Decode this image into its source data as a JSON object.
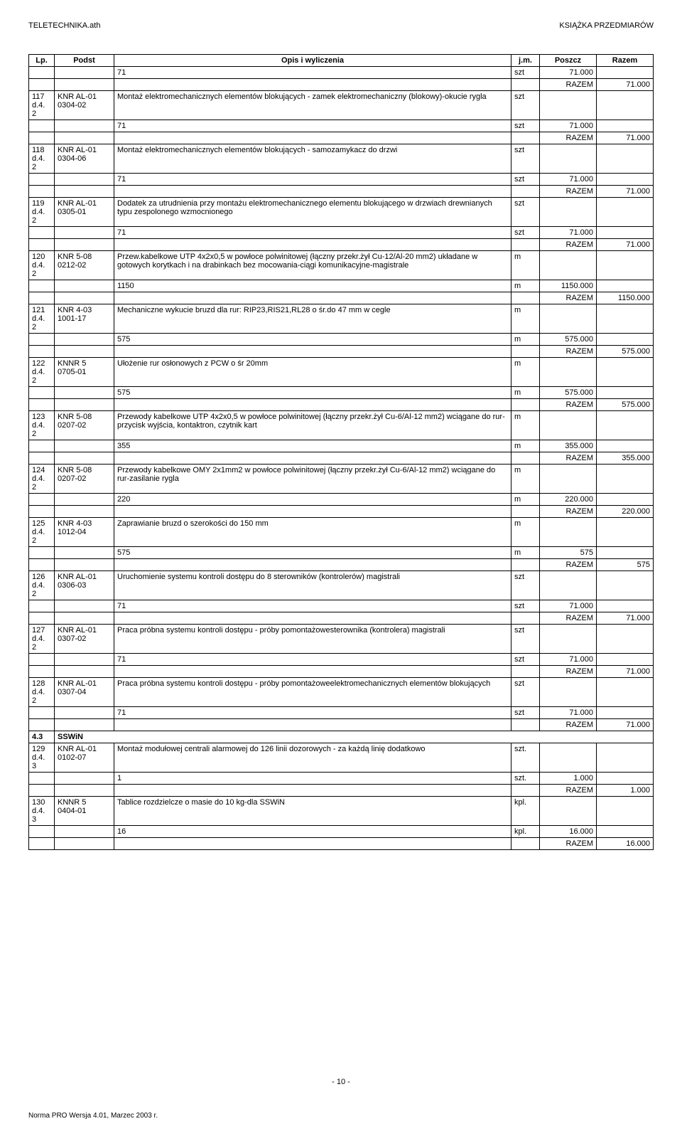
{
  "header_left": "TELETECHNIKA.ath",
  "header_right": "KSIĄŻKA PRZEDMIARÓW",
  "columns": {
    "lp": "Lp.",
    "podst": "Podst",
    "opis": "Opis i wyliczenia",
    "jm": "j.m.",
    "poszcz": "Poszcz",
    "razem": "Razem"
  },
  "razem_label": "RAZEM",
  "page_num": "- 10 -",
  "norma": "Norma PRO Wersja 4.01, Marzec 2003 r.",
  "rows": [
    {
      "type": "calc",
      "lp": "",
      "podst": "",
      "opis": "71",
      "jm": "szt",
      "poszcz": "71.000"
    },
    {
      "type": "razem",
      "razem": "71.000"
    },
    {
      "type": "item",
      "lp": "117\nd.4.\n2",
      "podst": "KNR AL-01\n0304-02",
      "opis": "Montaż elektromechanicznych elementów blokujących - zamek elektromechaniczny (blokowy)-okucie rygla",
      "jm": "szt"
    },
    {
      "type": "calc",
      "opis": "71",
      "jm": "szt",
      "poszcz": "71.000"
    },
    {
      "type": "razem",
      "razem": "71.000"
    },
    {
      "type": "item",
      "lp": "118\nd.4.\n2",
      "podst": "KNR AL-01\n0304-06",
      "opis": "Montaż elektromechanicznych elementów blokujących - samozamykacz do drzwi",
      "jm": "szt"
    },
    {
      "type": "calc",
      "opis": "71",
      "jm": "szt",
      "poszcz": "71.000"
    },
    {
      "type": "razem",
      "razem": "71.000"
    },
    {
      "type": "item",
      "lp": "119\nd.4.\n2",
      "podst": "KNR AL-01\n0305-01",
      "opis": "Dodatek za utrudnienia przy montażu elektromechanicznego elementu blokującego w drzwiach drewnianych typu zespolonego wzmocnionego",
      "jm": "szt"
    },
    {
      "type": "calc",
      "opis": "71",
      "jm": "szt",
      "poszcz": "71.000"
    },
    {
      "type": "razem",
      "razem": "71.000"
    },
    {
      "type": "item",
      "lp": "120\nd.4.\n2",
      "podst": "KNR 5-08\n0212-02",
      "opis": "Przew.kabelkowe  UTP 4x2x0,5 w powłoce polwinitowej (łączny przekr.żył Cu-12/Al-20 mm2) układane w gotowych korytkach i na drabinkach bez mocowania-ciągi komunikacyjne-magistrale",
      "jm": "m"
    },
    {
      "type": "calc",
      "opis": "1150",
      "jm": "m",
      "poszcz": "1150.000"
    },
    {
      "type": "razem",
      "razem": "1150.000"
    },
    {
      "type": "item",
      "lp": "121\nd.4.\n2",
      "podst": "KNR 4-03\n1001-17",
      "opis": "Mechaniczne wykucie bruzd dla rur: RIP23,RIS21,RL28 o śr.do 47 mm w cegle",
      "jm": "m"
    },
    {
      "type": "calc",
      "opis": "575",
      "jm": "m",
      "poszcz": "575.000"
    },
    {
      "type": "razem",
      "razem": "575.000"
    },
    {
      "type": "item",
      "lp": "122\nd.4.\n2",
      "podst": "KNNR 5\n0705-01",
      "opis": "Ułożenie rur osłonowych z PCW o śr 20mm",
      "jm": "m"
    },
    {
      "type": "calc",
      "opis": "575",
      "jm": "m",
      "poszcz": "575.000"
    },
    {
      "type": "razem",
      "razem": "575.000"
    },
    {
      "type": "item",
      "lp": "123\nd.4.\n2",
      "podst": "KNR 5-08\n0207-02",
      "opis": "Przewody kabelkowe UTP 4x2x0,5 w powłoce polwinitowej (łączny przekr.żył Cu-6/Al-12 mm2) wciągane do rur-przycisk wyjścia, kontaktron, czytnik kart",
      "jm": "m"
    },
    {
      "type": "calc",
      "opis": "355",
      "jm": "m",
      "poszcz": "355.000"
    },
    {
      "type": "razem",
      "razem": "355.000"
    },
    {
      "type": "item",
      "lp": "124\nd.4.\n2",
      "podst": "KNR 5-08\n0207-02",
      "opis": "Przewody kabelkowe OMY 2x1mm2 w powłoce polwinitowej (łączny przekr.żył Cu-6/Al-12 mm2) wciągane do rur-zasilanie rygla",
      "jm": "m"
    },
    {
      "type": "calc",
      "opis": "220",
      "jm": "m",
      "poszcz": "220.000"
    },
    {
      "type": "razem",
      "razem": "220.000"
    },
    {
      "type": "item",
      "lp": "125\nd.4.\n2",
      "podst": "KNR 4-03\n1012-04",
      "opis": "Zaprawianie bruzd o szerokości do 150 mm",
      "jm": "m"
    },
    {
      "type": "calc",
      "opis": "575",
      "jm": "m",
      "poszcz": "575"
    },
    {
      "type": "razem",
      "razem": "575"
    },
    {
      "type": "item",
      "lp": "126\nd.4.\n2",
      "podst": "KNR AL-01\n0306-03",
      "opis": "Uruchomienie systemu kontroli dostępu do 8 sterowników (kontrolerów) magistrali",
      "jm": "szt"
    },
    {
      "type": "calc",
      "opis": "71",
      "jm": "szt",
      "poszcz": "71.000"
    },
    {
      "type": "razem",
      "razem": "71.000"
    },
    {
      "type": "item",
      "lp": "127\nd.4.\n2",
      "podst": "KNR AL-01\n0307-02",
      "opis": "Praca próbna systemu kontroli dostępu - próby pomontażowesterownika (kontrolera) magistrali",
      "jm": "szt"
    },
    {
      "type": "calc",
      "opis": "71",
      "jm": "szt",
      "poszcz": "71.000"
    },
    {
      "type": "razem",
      "razem": "71.000"
    },
    {
      "type": "item",
      "lp": "128\nd.4.\n2",
      "podst": "KNR AL-01\n0307-04",
      "opis": "Praca próbna systemu kontroli dostępu - próby pomontażoweelektromechanicznych elementów blokujących",
      "jm": "szt"
    },
    {
      "type": "calc",
      "opis": "71",
      "jm": "szt",
      "poszcz": "71.000"
    },
    {
      "type": "razem",
      "razem": "71.000"
    },
    {
      "type": "section",
      "lp": "4.3",
      "podst": "SSWiN"
    },
    {
      "type": "item",
      "lp": "129\nd.4.\n3",
      "podst": "KNR AL-01\n0102-07",
      "opis": "Montaż modułowej centrali alarmowej do 126 linii dozorowych - za każdą linię dodatkowo",
      "jm": "szt."
    },
    {
      "type": "calc",
      "opis": "1",
      "jm": "szt.",
      "poszcz": "1.000"
    },
    {
      "type": "razem",
      "razem": "1.000"
    },
    {
      "type": "item",
      "lp": "130\nd.4.\n3",
      "podst": "KNNR 5\n0404-01",
      "opis": "Tablice rozdzielcze o masie do 10 kg-dla SSWiN",
      "jm": "kpl."
    },
    {
      "type": "calc",
      "opis": "16",
      "jm": "kpl.",
      "poszcz": "16.000"
    },
    {
      "type": "razem",
      "razem": "16.000"
    }
  ]
}
